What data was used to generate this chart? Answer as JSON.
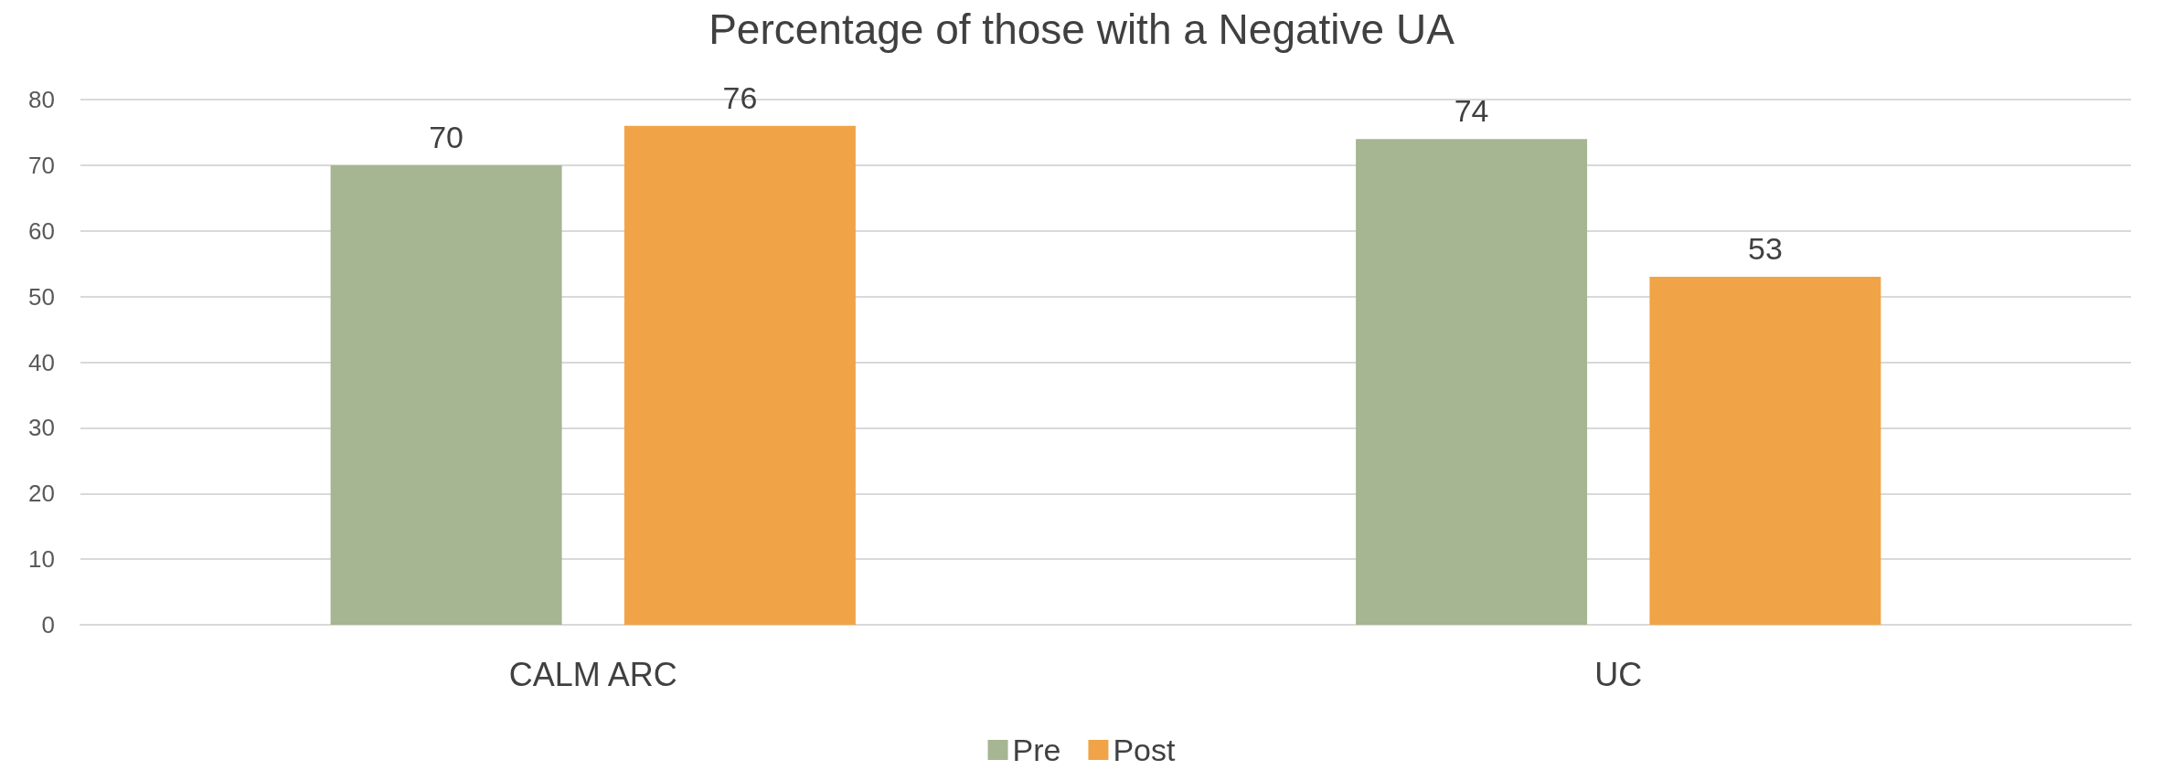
{
  "chart_data": {
    "type": "bar",
    "title": "Percentage of those with a Negative UA",
    "categories": [
      "CALM ARC",
      "UC"
    ],
    "series": [
      {
        "name": "Pre",
        "color": "#a6b592",
        "values": [
          70,
          74
        ]
      },
      {
        "name": "Post",
        "color": "#f0a447",
        "values": [
          76,
          53
        ]
      }
    ],
    "ylim": [
      0,
      80
    ],
    "yticks": [
      0,
      10,
      20,
      30,
      40,
      50,
      60,
      70,
      80
    ],
    "grid": "y",
    "legend": "bottom",
    "data_labels": true
  }
}
